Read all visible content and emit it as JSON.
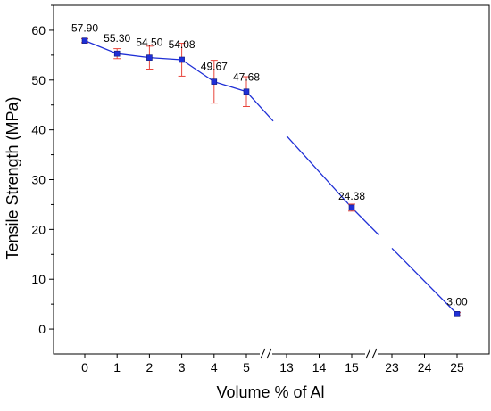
{
  "chart_data": {
    "type": "line",
    "title": "",
    "xlabel": "Volume % of Al",
    "ylabel": "Tensile Strength (MPa)",
    "ylim": [
      -5,
      65
    ],
    "yticks": [
      0,
      10,
      20,
      30,
      40,
      50,
      60
    ],
    "x_tick_labels": [
      "0",
      "1",
      "2",
      "3",
      "4",
      "5",
      "13",
      "14",
      "15",
      "23",
      "24",
      "25"
    ],
    "axis_breaks": [
      "5-13",
      "15-23"
    ],
    "colors": {
      "line": "#1f2fd6",
      "marker": "#1f2fd6",
      "error_bar": "#e8453c"
    },
    "grid": false,
    "legend": "none",
    "series": [
      {
        "x": [
          0,
          1,
          2,
          3,
          4,
          5,
          15,
          25
        ],
        "y": [
          57.9,
          55.3,
          54.5,
          54.08,
          49.67,
          47.68,
          24.38,
          3.0
        ],
        "error": [
          0.4,
          1.0,
          2.3,
          3.3,
          4.3,
          3.0,
          0.7,
          0.3
        ],
        "labels": [
          "57.90",
          "55.30",
          "54.50",
          "54.08",
          "49.67",
          "47.68",
          "24.38",
          "3.00"
        ]
      }
    ]
  }
}
